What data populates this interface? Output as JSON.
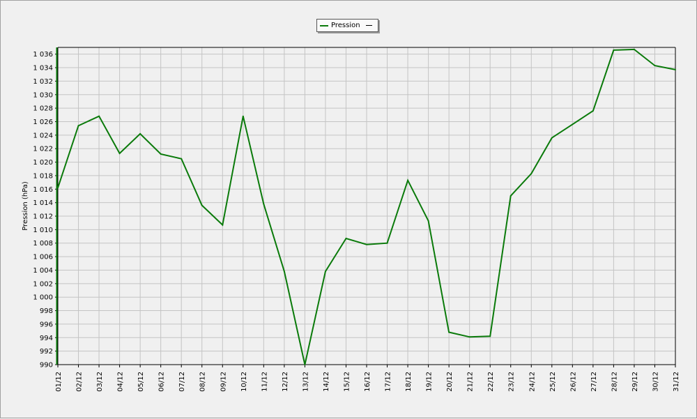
{
  "chart_data": {
    "type": "line",
    "ylabel": "Pression (hPa)",
    "xlabel": "",
    "ylim": [
      990,
      1037
    ],
    "y_tick_step": 2,
    "grid": true,
    "legend_position": "top-center",
    "categories": [
      "01/12",
      "02/12",
      "03/12",
      "04/12",
      "05/12",
      "06/12",
      "07/12",
      "08/12",
      "09/12",
      "10/12",
      "11/12",
      "12/12",
      "13/12",
      "14/12",
      "15/12",
      "16/12",
      "17/12",
      "18/12",
      "19/12",
      "20/12",
      "21/12",
      "22/12",
      "23/12",
      "24/12",
      "25/12",
      "26/12",
      "27/12",
      "28/12",
      "29/12",
      "30/12",
      "31/12"
    ],
    "series": [
      {
        "name": "Pression",
        "color": "#0a7a0a",
        "values": [
          1016.2,
          1025.4,
          1026.8,
          1021.3,
          1024.2,
          1021.2,
          1020.5,
          1013.6,
          1010.7,
          1026.8,
          1013.8,
          1003.8,
          990.0,
          1003.8,
          1008.7,
          1007.8,
          1008.0,
          1017.3,
          1011.3,
          994.8,
          994.1,
          994.2,
          1015.0,
          1018.3,
          1023.6,
          1025.6,
          1027.6,
          1036.6,
          1036.7,
          1034.3,
          1033.7
        ]
      }
    ]
  },
  "legend": {
    "series_label": "Pression"
  }
}
